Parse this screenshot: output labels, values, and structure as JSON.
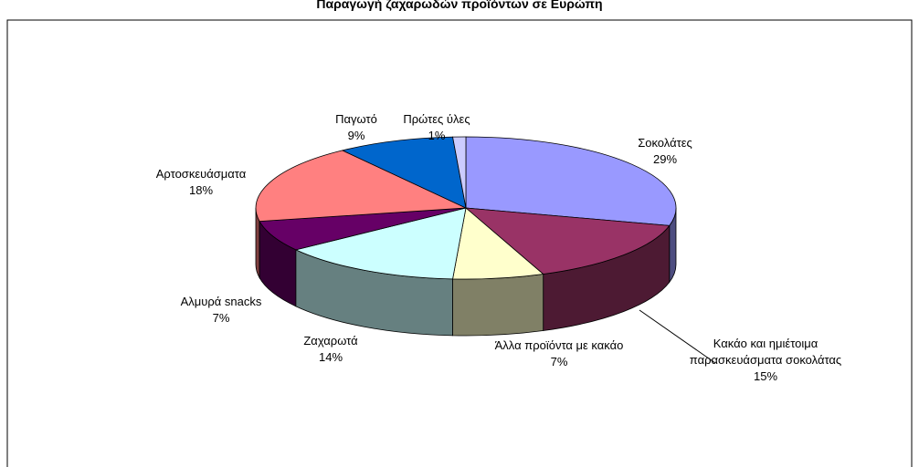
{
  "chart_data": {
    "type": "pie3d",
    "title": "Παραγωγή ζαχαρωδών προϊόντων σε Ευρώπη",
    "categories": [
      "Σοκολάτες",
      "Κακάο και ημιέτοιμα παρασκευάσματα σοκολάτας",
      "Άλλα προϊόντα με κακάο",
      "Ζαχαρωτά",
      "Αλμυρά snacks",
      "Αρτοσκευάσματα",
      "Παγωτό",
      "Πρώτες ύλες"
    ],
    "values": [
      29,
      15,
      7,
      14,
      7,
      18,
      9,
      1
    ],
    "value_labels": [
      "29%",
      "15%",
      "7%",
      "14%",
      "7%",
      "18%",
      "9%",
      "1%"
    ],
    "colors": [
      "#9999ff",
      "#993366",
      "#ffffcc",
      "#ccffff",
      "#660066",
      "#ff8080",
      "#0066cc",
      "#ccccff"
    ]
  }
}
